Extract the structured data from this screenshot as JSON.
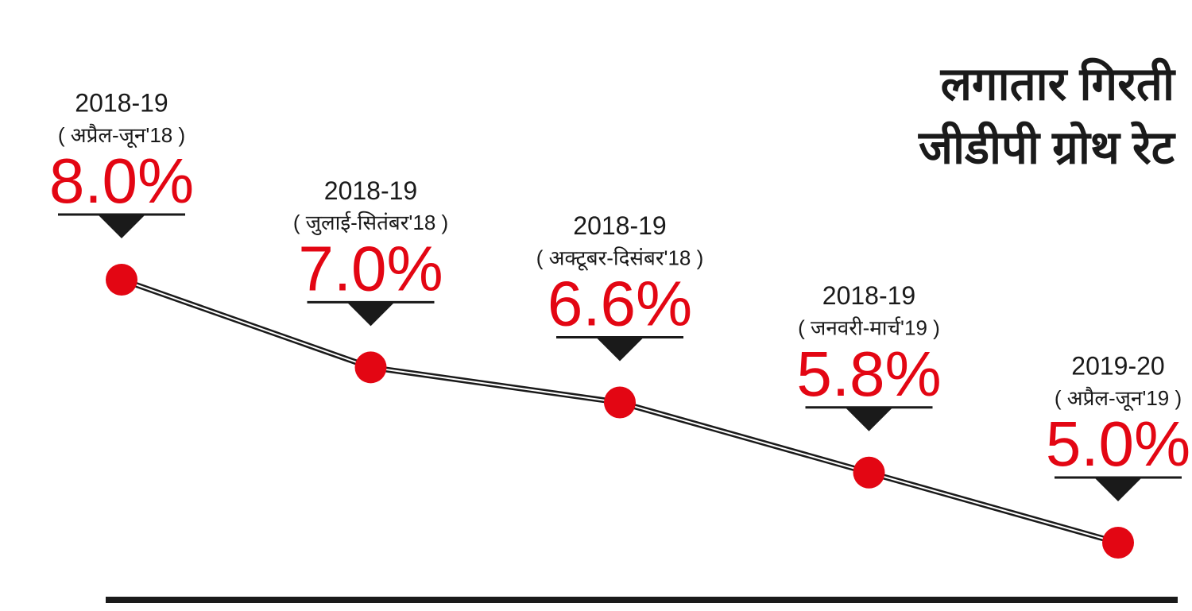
{
  "chart_data": {
    "type": "line",
    "title": [
      "लगातार गिरती",
      "जीडीपी ग्रोथ रेट"
    ],
    "categories": [
      "2018-19",
      "2018-19",
      "2018-19",
      "2018-19",
      "2019-20"
    ],
    "periods": [
      "( अप्रैल-जून'18 )",
      "( जुलाई-सितंबर'18 )",
      "( अक्टूबर-दिसंबर'18 )",
      "( जनवरी-मार्च'19 )",
      "( अप्रैल-जून'19 )"
    ],
    "values": [
      8.0,
      7.0,
      6.6,
      5.8,
      5.0
    ],
    "value_labels": [
      "8.0%",
      "7.0%",
      "6.6%",
      "5.8%",
      "5.0%"
    ],
    "color": "#e30613"
  }
}
